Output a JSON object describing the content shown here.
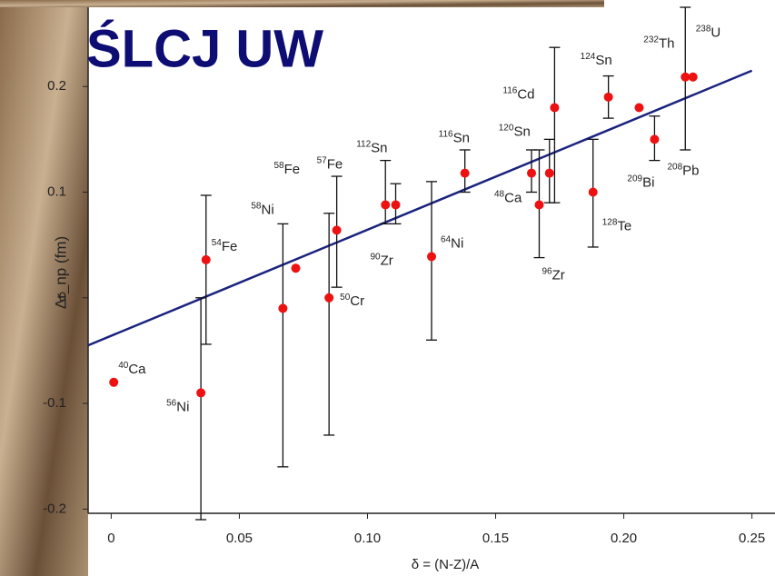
{
  "header": {
    "title": "ŚLCJ UW"
  },
  "chart_data": {
    "type": "scatter",
    "x_label": "δ = (N-Z)/A",
    "y_label": "Δr_np (fm)",
    "xlim": [
      -0.009,
      0.259
    ],
    "ylim": [
      -0.204,
      0.275
    ],
    "xticks": [
      0,
      {
        "value": 0.05,
        "label": "0.05"
      },
      {
        "value": 0.1,
        "label": "0.10"
      },
      {
        "value": 0.15,
        "label": "0.15"
      },
      {
        "value": 0.2,
        "label": "0.20"
      },
      {
        "value": 0.25,
        "label": "0.25"
      }
    ],
    "yticks": [
      {
        "value": -0.2,
        "label": "-0.2"
      },
      {
        "value": -0.1,
        "label": "-0.1"
      },
      0,
      0.1,
      0.2
    ],
    "color": "#ee1111",
    "mass": [
      "40",
      "56",
      "54",
      "58",
      "58",
      "50",
      "57",
      "112",
      "90",
      "64",
      "116",
      "48",
      "96",
      "120",
      "116",
      "128",
      "124",
      "208",
      "209",
      "232",
      "238"
    ],
    "element": [
      "Ca",
      "Ni",
      "Fe",
      "Ni",
      "Fe",
      "Cr",
      "Fe",
      "Sn",
      "Zr",
      "Ni",
      "Sn",
      "Ca",
      "Zr",
      "Sn",
      "Cd",
      "Te",
      "Sn",
      "Pb",
      "Bi",
      "Th",
      "U"
    ],
    "x": [
      0.001,
      0.035,
      0.037,
      0.067,
      0.072,
      0.085,
      0.088,
      0.107,
      0.111,
      0.125,
      0.138,
      0.164,
      0.167,
      0.171,
      0.173,
      0.188,
      0.194,
      0.206,
      0.212,
      0.224,
      0.227
    ],
    "values": [
      -0.08,
      -0.09,
      0.036,
      -0.01,
      0.028,
      0,
      0.064,
      0.088,
      0.088,
      0.039,
      0.118,
      0.118,
      0.088,
      0.118,
      0.18,
      0.1,
      0.19,
      0.18,
      0.15,
      0.209,
      0.209
    ],
    "error_plus": [
      null,
      0.09,
      0.061,
      0.08,
      null,
      0.08,
      0.051,
      0.042,
      0.02,
      0.071,
      0.022,
      0.022,
      0.052,
      0.032,
      0.057,
      0.05,
      0.02,
      null,
      0.022,
      0.066,
      null
    ],
    "error_minus": [
      null,
      0.12,
      0.08,
      0.15,
      null,
      0.13,
      0.054,
      0.018,
      0.018,
      0.079,
      0.018,
      0.018,
      0.05,
      0.028,
      0.09,
      0.052,
      0.02,
      null,
      0.02,
      0.069,
      null
    ],
    "fit_line": {
      "color": "#1a237e",
      "x": [
        -0.009,
        0.25
      ],
      "y": [
        -0.045,
        0.215
      ]
    }
  }
}
